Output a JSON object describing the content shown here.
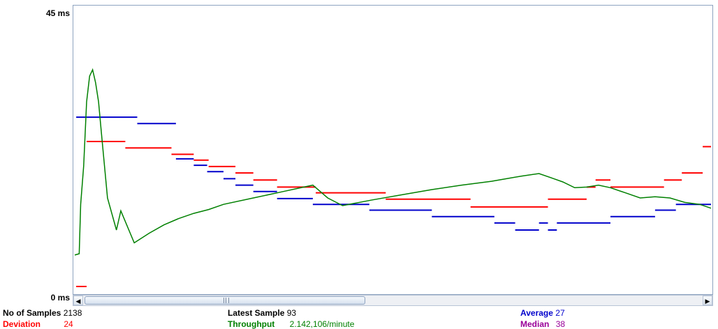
{
  "chart_data": {
    "type": "line",
    "y_axis": {
      "min": 0,
      "max": 45,
      "unit": "ms",
      "top_label": "45  ms",
      "bottom_label": "0  ms"
    },
    "x_axis": {
      "samples": 2138,
      "visible_max_sample": 2138
    },
    "grid": false,
    "series": [
      {
        "name": "Average",
        "color": "#0000cc",
        "style": "segments",
        "points": [
          [
            5,
            27.6
          ],
          [
            210,
            27.6
          ],
          [
            210,
            26.6
          ],
          [
            340,
            26.6
          ],
          [
            340,
            21.1
          ],
          [
            400,
            21.1
          ],
          [
            400,
            20.1
          ],
          [
            445,
            20.1
          ],
          [
            445,
            19.1
          ],
          [
            500,
            19.1
          ],
          [
            500,
            18
          ],
          [
            540,
            18
          ],
          [
            540,
            17
          ],
          [
            600,
            17
          ],
          [
            600,
            16
          ],
          [
            680,
            16
          ],
          [
            680,
            14.9
          ],
          [
            800,
            14.9
          ],
          [
            800,
            14
          ],
          [
            990,
            14
          ],
          [
            990,
            13.1
          ],
          [
            1200,
            13.1
          ],
          [
            1200,
            12.1
          ],
          [
            1410,
            12.1
          ],
          [
            1410,
            11.1
          ],
          [
            1480,
            11.1
          ],
          [
            1480,
            10
          ],
          [
            1560,
            10
          ],
          [
            1560,
            11.1
          ],
          [
            1590,
            11.1
          ],
          [
            1590,
            10
          ],
          [
            1620,
            10
          ],
          [
            1620,
            11.1
          ],
          [
            1800,
            11.1
          ],
          [
            1800,
            12.1
          ],
          [
            1950,
            12.1
          ],
          [
            1950,
            13.1
          ],
          [
            2020,
            13.1
          ],
          [
            2020,
            14
          ],
          [
            2138,
            14
          ]
        ]
      },
      {
        "name": "Deviation",
        "color": "#ff0000",
        "style": "segments",
        "points": [
          [
            5,
            1.2
          ],
          [
            40,
            1.2
          ],
          [
            40,
            23.8
          ],
          [
            170,
            23.8
          ],
          [
            170,
            22.8
          ],
          [
            325,
            22.8
          ],
          [
            325,
            21.8
          ],
          [
            400,
            21.8
          ],
          [
            400,
            20.9
          ],
          [
            450,
            20.9
          ],
          [
            450,
            19.9
          ],
          [
            540,
            19.9
          ],
          [
            540,
            18.9
          ],
          [
            600,
            18.9
          ],
          [
            600,
            17.8
          ],
          [
            680,
            17.8
          ],
          [
            680,
            16.7
          ],
          [
            810,
            16.7
          ],
          [
            810,
            15.8
          ],
          [
            1045,
            15.8
          ],
          [
            1045,
            14.8
          ],
          [
            1330,
            14.8
          ],
          [
            1330,
            13.6
          ],
          [
            1590,
            13.6
          ],
          [
            1590,
            14.8
          ],
          [
            1720,
            14.8
          ],
          [
            1720,
            16.7
          ],
          [
            1750,
            16.7
          ],
          [
            1750,
            17.8
          ],
          [
            1800,
            17.8
          ],
          [
            1800,
            16.7
          ],
          [
            1980,
            16.7
          ],
          [
            1980,
            17.8
          ],
          [
            2040,
            17.8
          ],
          [
            2040,
            18.9
          ],
          [
            2110,
            18.9
          ],
          [
            2110,
            23
          ],
          [
            2138,
            23
          ]
        ]
      },
      {
        "name": "Throughput",
        "color": "#008000",
        "style": "line",
        "points": [
          [
            0,
            6.1
          ],
          [
            15,
            6.3
          ],
          [
            20,
            14
          ],
          [
            30,
            20
          ],
          [
            40,
            30
          ],
          [
            50,
            34
          ],
          [
            60,
            35
          ],
          [
            70,
            33
          ],
          [
            80,
            30
          ],
          [
            90,
            25
          ],
          [
            110,
            15
          ],
          [
            140,
            10
          ],
          [
            155,
            13
          ],
          [
            200,
            8
          ],
          [
            250,
            9.5
          ],
          [
            300,
            10.8
          ],
          [
            350,
            11.8
          ],
          [
            400,
            12.6
          ],
          [
            450,
            13.2
          ],
          [
            500,
            14
          ],
          [
            600,
            15
          ],
          [
            700,
            16
          ],
          [
            800,
            17
          ],
          [
            850,
            15
          ],
          [
            900,
            13.8
          ],
          [
            1000,
            14.7
          ],
          [
            1100,
            15.5
          ],
          [
            1200,
            16.3
          ],
          [
            1300,
            17
          ],
          [
            1400,
            17.6
          ],
          [
            1500,
            18.4
          ],
          [
            1560,
            18.8
          ],
          [
            1610,
            18
          ],
          [
            1640,
            17.5
          ],
          [
            1680,
            16.6
          ],
          [
            1720,
            16.7
          ],
          [
            1760,
            17
          ],
          [
            1800,
            16.6
          ],
          [
            1850,
            15.8
          ],
          [
            1900,
            15
          ],
          [
            1950,
            15.2
          ],
          [
            2000,
            15
          ],
          [
            2050,
            14.3
          ],
          [
            2100,
            14
          ],
          [
            2138,
            13.4
          ]
        ]
      },
      {
        "name": "Median",
        "color": "#990099",
        "style": "segments",
        "points": []
      }
    ]
  },
  "scrollbar": {
    "left_arrow": "◀",
    "right_arrow": "▶",
    "thumb_start": 0.0,
    "thumb_end": 0.44
  },
  "stats": {
    "samples_label": "No of Samples",
    "samples_value": "2138",
    "deviation_label": "Deviation",
    "deviation_value": "24",
    "latest_label": "Latest Sample",
    "latest_value": "93",
    "throughput_label": "Throughput",
    "throughput_value": "2.142,106/minute",
    "average_label": "Average",
    "average_value": "27",
    "median_label": "Median",
    "median_value": "38"
  },
  "colors": {
    "black": "#000000",
    "red": "#ff0000",
    "green": "#008000",
    "blue": "#0000cc",
    "purple": "#990099"
  }
}
